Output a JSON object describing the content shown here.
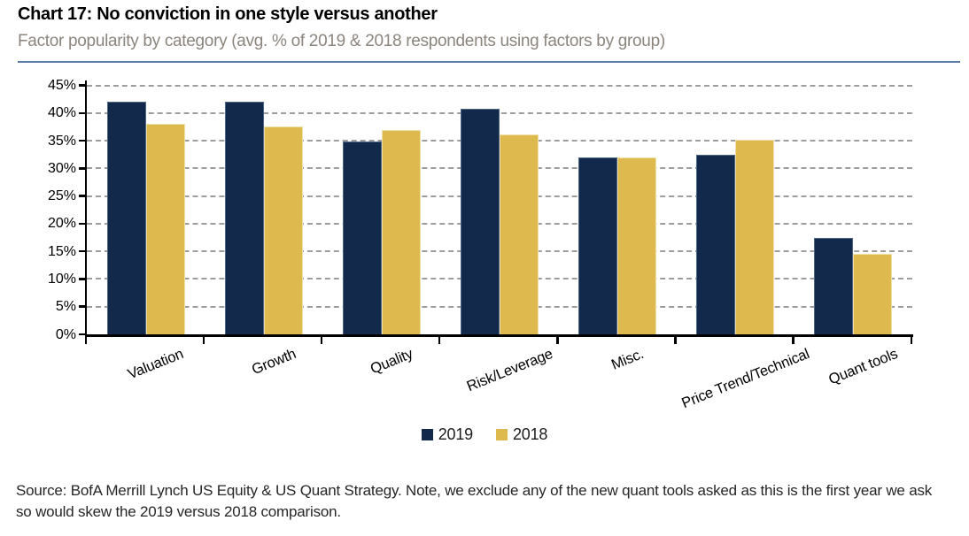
{
  "header": {
    "title": "Chart 17: No conviction in one style versus another",
    "subtitle": "Factor popularity by category (avg. % of 2019 & 2018 respondents using factors by group)"
  },
  "footer": {
    "source_line1": "Source: BofA Merrill Lynch US Equity & US Quant Strategy. Note, we exclude any of the new quant tools asked as this is the first year we ask",
    "source_line2": "so would skew the 2019 versus 2018 comparison."
  },
  "chart_data": {
    "type": "bar",
    "title": "Chart 17: No conviction in one style versus another",
    "subtitle": "Factor popularity by category (avg. % of 2019 & 2018 respondents using factors by group)",
    "categories": [
      "Valuation",
      "Growth",
      "Quality",
      "Risk/Leverage",
      "Misc.",
      "Price Trend/Technical",
      "Quant tools"
    ],
    "series": [
      {
        "name": "2019",
        "color": "#13294B",
        "values": [
          42,
          42,
          34.8,
          40.8,
          32,
          32.5,
          17.4
        ]
      },
      {
        "name": "2018",
        "color": "#DDB94E",
        "values": [
          38,
          37.5,
          37,
          36.2,
          32,
          35.2,
          14.6
        ]
      }
    ],
    "ylabel": "",
    "xlabel": "",
    "ylim": [
      0,
      45
    ],
    "ytick_step": 5,
    "ytick_suffix": "%",
    "grid": "horizontal-dashed",
    "legend_position": "bottom-center",
    "colors": {
      "grid": "#9D9D9D",
      "axis": "#000000",
      "header_rule": "#5B7FA7",
      "subtitle_text": "#8B857D"
    }
  }
}
